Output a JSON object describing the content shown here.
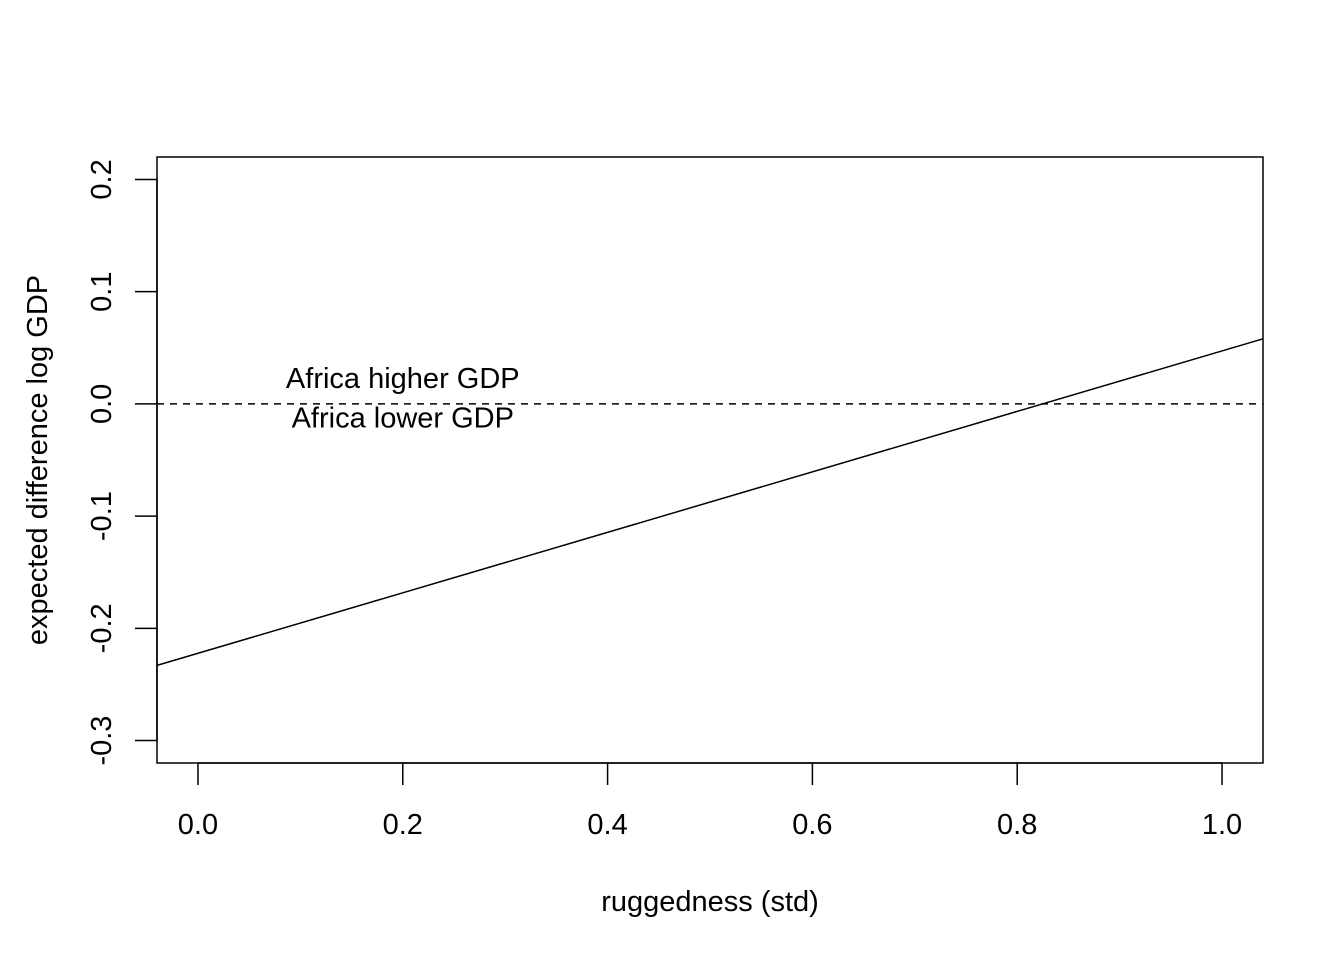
{
  "chart_data": {
    "type": "line",
    "title": "",
    "xlabel": "ruggedness (std)",
    "ylabel": "expected difference log GDP",
    "xlim": [
      -0.04,
      1.04
    ],
    "ylim": [
      -0.32,
      0.22
    ],
    "xticks": [
      0.0,
      0.2,
      0.4,
      0.6,
      0.8,
      1.0
    ],
    "xtick_labels": [
      "0.0",
      "0.2",
      "0.4",
      "0.6",
      "0.8",
      "1.0"
    ],
    "yticks": [
      -0.3,
      -0.2,
      -0.1,
      0.0,
      0.1,
      0.2
    ],
    "ytick_labels": [
      "-0.3",
      "-0.2",
      "-0.1",
      "0.0",
      "0.1",
      "0.2"
    ],
    "grid": false,
    "series": [
      {
        "x": [
          -0.04,
          1.04
        ],
        "y": [
          -0.233,
          0.058
        ],
        "style": "solid",
        "color": "#000000"
      },
      {
        "x": [
          -0.04,
          1.04
        ],
        "y": [
          0.0,
          0.0
        ],
        "style": "dashed",
        "color": "#000000"
      }
    ],
    "annotations": [
      {
        "text": "Africa higher GDP",
        "x": 0.2,
        "y": 0.014
      },
      {
        "text": "Africa lower GDP",
        "x": 0.2,
        "y": -0.021
      }
    ]
  }
}
